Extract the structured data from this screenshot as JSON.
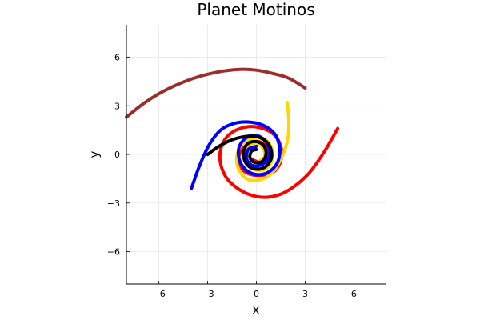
{
  "chart_data": {
    "type": "line",
    "title": "Planet Motinos",
    "xlabel": "x",
    "ylabel": "y",
    "xlim": [
      -8,
      8
    ],
    "ylim": [
      -8,
      8
    ],
    "xticks": [
      -6,
      -3,
      0,
      3,
      6
    ],
    "yticks": [
      -6,
      -3,
      0,
      3,
      6
    ],
    "xtick_labels": [
      "−6",
      "−3",
      "0",
      "3",
      "6"
    ],
    "ytick_labels": [
      "−6",
      "−3",
      "0",
      "3",
      "6"
    ],
    "grid": true,
    "legend": "none",
    "series": [
      {
        "color": "#9b2d2d",
        "x": [
          -8.0,
          -7.0,
          -6.0,
          -5.0,
          -4.0,
          -3.0,
          -2.0,
          -1.0,
          0.0,
          1.0,
          2.0,
          3.0
        ],
        "y": [
          2.3,
          3.1,
          3.75,
          4.25,
          4.65,
          4.95,
          5.15,
          5.25,
          5.2,
          5.0,
          4.7,
          4.1
        ]
      },
      {
        "color": "#ff0000",
        "x": [
          5.0,
          4.2,
          3.2,
          2.0,
          1.0,
          0.0,
          -1.0,
          -1.8,
          -2.2,
          -2.2,
          -1.8,
          -1.0,
          0.0,
          1.0,
          1.5,
          1.5,
          1.0,
          0.0,
          -0.8,
          -1.1,
          -0.8,
          0.0,
          0.6,
          0.7,
          0.3,
          -0.3
        ],
        "y": [
          1.6,
          0.2,
          -1.2,
          -2.2,
          -2.6,
          -2.6,
          -2.2,
          -1.5,
          -0.6,
          0.3,
          1.1,
          1.6,
          1.7,
          1.3,
          0.5,
          -0.4,
          -1.1,
          -1.3,
          -1.0,
          -0.3,
          0.4,
          0.8,
          0.5,
          -0.1,
          -0.5,
          -0.3
        ]
      },
      {
        "color": "#ffd700",
        "x": [
          1.9,
          2.0,
          1.9,
          1.5,
          0.9,
          0.1,
          -0.6,
          -1.1,
          -1.2,
          -0.9,
          -0.3,
          0.4,
          0.9,
          1.0,
          0.7,
          0.1,
          -0.5,
          -0.7,
          -0.5,
          0.0,
          0.4,
          0.5,
          0.2
        ],
        "y": [
          3.2,
          2.0,
          0.8,
          -0.3,
          -1.2,
          -1.6,
          -1.5,
          -0.9,
          -0.1,
          0.6,
          1.0,
          1.0,
          0.5,
          -0.2,
          -0.8,
          -1.0,
          -0.7,
          -0.1,
          0.5,
          0.7,
          0.4,
          -0.1,
          -0.4
        ]
      },
      {
        "color": "#0000ff",
        "x": [
          -4.0,
          -3.5,
          -2.9,
          -2.2,
          -1.4,
          -0.5,
          0.4,
          1.1,
          1.4,
          1.4,
          1.1,
          0.5,
          -0.2,
          -0.8,
          -1.1,
          -1.0,
          -0.5,
          0.2,
          0.7,
          0.8,
          0.4,
          -0.2,
          -0.6,
          -0.5,
          0.0
        ],
        "y": [
          -2.1,
          -0.7,
          0.6,
          1.5,
          1.9,
          2.0,
          1.8,
          1.3,
          0.6,
          -0.2,
          -0.8,
          -1.2,
          -1.2,
          -0.8,
          -0.1,
          0.6,
          1.1,
          1.1,
          0.6,
          -0.1,
          -0.6,
          -0.7,
          -0.3,
          0.3,
          0.5
        ]
      },
      {
        "color": "#000000",
        "x": [
          -3.0,
          -2.3,
          -1.5,
          -0.7,
          0.0,
          0.6,
          0.9,
          0.9,
          0.5,
          -0.1,
          -0.6,
          -0.8,
          -0.6,
          -0.1,
          0.4,
          0.6,
          0.4,
          -0.1,
          -0.4,
          -0.3,
          0.0
        ],
        "y": [
          0.0,
          0.5,
          0.9,
          1.1,
          1.1,
          0.8,
          0.3,
          -0.3,
          -0.8,
          -0.9,
          -0.6,
          0.0,
          0.6,
          0.8,
          0.6,
          0.1,
          -0.4,
          -0.5,
          -0.2,
          0.2,
          0.3
        ]
      }
    ]
  }
}
